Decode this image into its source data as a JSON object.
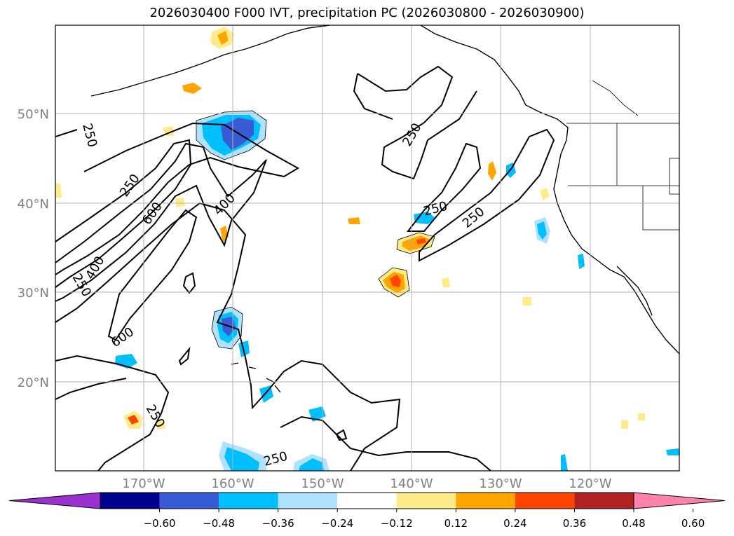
{
  "title": "2026030400 F000 IVT, precipitation PC (2026030800 - 2026030900)",
  "map": {
    "lat_labels": [
      "50°N",
      "40°N",
      "30°N",
      "20°N"
    ],
    "lon_labels": [
      "170°W",
      "160°W",
      "150°W",
      "140°W",
      "130°W",
      "120°W"
    ],
    "ivt_contour_labels": [
      "250",
      "250",
      "600",
      "400",
      "400",
      "250",
      "600",
      "250",
      "250",
      "250",
      "250",
      "250"
    ],
    "colors": {
      "line": "#000000",
      "grid": "#b0b0b0",
      "tick_label": "#808080"
    }
  },
  "colorbar": {
    "tick_labels": [
      "−0.60",
      "−0.48",
      "−0.36",
      "−0.24",
      "−0.12",
      "0.12",
      "0.24",
      "0.36",
      "0.48",
      "0.60"
    ],
    "bins": [
      {
        "color": "#9b30d0"
      },
      {
        "color": "#000090"
      },
      {
        "color": "#3a5bd6"
      },
      {
        "color": "#00bfff"
      },
      {
        "color": "#b0e2ff"
      },
      {
        "color": "#ffffff"
      },
      {
        "color": "#ffeb8a"
      },
      {
        "color": "#ffa500"
      },
      {
        "color": "#ff4500"
      },
      {
        "color": "#b22222"
      },
      {
        "color": "#ff82ab"
      }
    ]
  }
}
